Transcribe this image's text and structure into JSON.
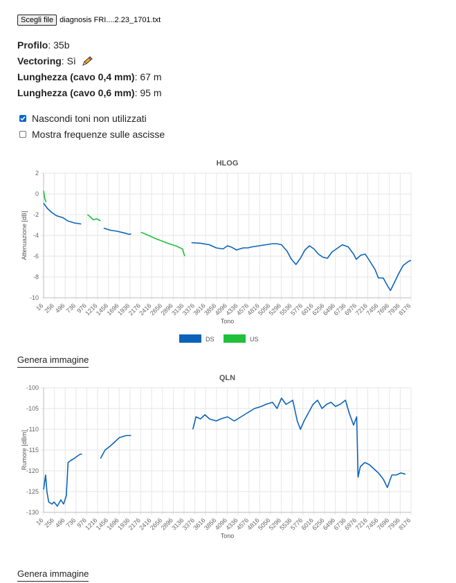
{
  "file": {
    "button_label": "Scegli file",
    "file_name": "diagnosis FRI....2.23_1701.txt"
  },
  "info": [
    {
      "label": "Profilo",
      "value": "35b"
    },
    {
      "label": "Vectoring",
      "value": "Sì"
    },
    {
      "label": "Lunghezza (cavo 0,4 mm)",
      "value": "67 m"
    },
    {
      "label": "Lunghezza (cavo 0,6 mm)",
      "value": "95 m"
    }
  ],
  "vectoring_icon": "pencil-icon",
  "options": [
    {
      "label": "Nascondi toni non utilizzati",
      "checked": true
    },
    {
      "label": "Mostra frequenze sulle ascisse",
      "checked": false
    }
  ],
  "generate_label": "Genera immagine",
  "colors": {
    "ds": "#0b63b8",
    "us": "#1fc03a",
    "grid": "#e6e6e6",
    "checkbox": "#0b63ce"
  },
  "x_ticks": [
    "16",
    "256",
    "496",
    "736",
    "976",
    "1216",
    "1456",
    "1696",
    "1936",
    "2176",
    "2416",
    "2656",
    "2896",
    "3136",
    "3376",
    "3616",
    "3856",
    "4096",
    "4336",
    "4576",
    "4816",
    "5056",
    "5296",
    "5536",
    "5776",
    "6016",
    "6256",
    "6496",
    "6736",
    "6976",
    "7216",
    "7456",
    "7696",
    "7936",
    "8176"
  ],
  "chart_data": [
    {
      "type": "line",
      "title": "HLOG",
      "xlabel": "Tono",
      "ylabel": "Attenuazione [dB]",
      "ylim": [
        -10,
        2
      ],
      "xlim": [
        16,
        8176
      ],
      "y_ticks": [
        "2",
        "0",
        "-2",
        "-4",
        "-6",
        "-8",
        "-10"
      ],
      "legend": [
        "DS",
        "US"
      ],
      "legend_position": "bottom",
      "series": [
        {
          "name": "DS",
          "segments": [
            [
              [
                16,
                -0.9
              ],
              [
                100,
                -1.4
              ],
              [
                200,
                -1.8
              ],
              [
                300,
                -2.1
              ],
              [
                450,
                -2.3
              ],
              [
                550,
                -2.6
              ],
              [
                700,
                -2.8
              ],
              [
                850,
                -2.9
              ]
            ],
            [
              [
                1350,
                -3.3
              ],
              [
                1500,
                -3.5
              ],
              [
                1650,
                -3.6
              ],
              [
                1800,
                -3.75
              ],
              [
                1920,
                -3.9
              ],
              [
                1960,
                -3.85
              ]
            ],
            [
              [
                3300,
                -4.7
              ],
              [
                3500,
                -4.75
              ],
              [
                3700,
                -4.9
              ],
              [
                3850,
                -5.2
              ],
              [
                4000,
                -5.3
              ],
              [
                4100,
                -5.0
              ],
              [
                4200,
                -5.15
              ],
              [
                4300,
                -5.4
              ],
              [
                4450,
                -5.2
              ],
              [
                4550,
                -5.2
              ],
              [
                4650,
                -5.1
              ],
              [
                4800,
                -5.0
              ],
              [
                4950,
                -4.9
              ],
              [
                5100,
                -4.8
              ],
              [
                5200,
                -4.8
              ],
              [
                5300,
                -4.9
              ],
              [
                5420,
                -5.5
              ],
              [
                5520,
                -6.3
              ],
              [
                5620,
                -6.8
              ],
              [
                5720,
                -6.2
              ],
              [
                5820,
                -5.4
              ],
              [
                5920,
                -5.0
              ],
              [
                6020,
                -5.3
              ],
              [
                6120,
                -5.8
              ],
              [
                6220,
                -6.1
              ],
              [
                6320,
                -6.2
              ],
              [
                6420,
                -5.6
              ],
              [
                6520,
                -5.3
              ],
              [
                6650,
                -4.9
              ],
              [
                6780,
                -5.1
              ],
              [
                6900,
                -5.8
              ],
              [
                6960,
                -6.3
              ],
              [
                7060,
                -5.9
              ],
              [
                7160,
                -5.8
              ],
              [
                7250,
                -6.4
              ],
              [
                7380,
                -7.3
              ],
              [
                7450,
                -8.1
              ],
              [
                7560,
                -8.1
              ],
              [
                7660,
                -8.9
              ],
              [
                7720,
                -9.3
              ],
              [
                7800,
                -8.6
              ],
              [
                7900,
                -7.7
              ],
              [
                8000,
                -6.9
              ],
              [
                8120,
                -6.5
              ],
              [
                8176,
                -6.4
              ]
            ]
          ]
        },
        {
          "name": "US",
          "segments": [
            [
              [
                16,
                0.3
              ],
              [
                40,
                -0.4
              ],
              [
                70,
                -0.8
              ]
            ],
            [
              [
                990,
                -2.0
              ],
              [
                1050,
                -2.2
              ],
              [
                1120,
                -2.5
              ],
              [
                1200,
                -2.4
              ],
              [
                1280,
                -2.6
              ]
            ],
            [
              [
                2180,
                -3.7
              ],
              [
                2350,
                -4.0
              ],
              [
                2500,
                -4.3
              ],
              [
                2650,
                -4.55
              ],
              [
                2800,
                -4.8
              ],
              [
                2950,
                -5.0
              ],
              [
                3100,
                -5.3
              ],
              [
                3150,
                -6.0
              ]
            ]
          ]
        }
      ]
    },
    {
      "type": "line",
      "title": "QLN",
      "xlabel": "Tono",
      "ylabel": "Rumore [dBm]",
      "ylim": [
        -130,
        -100
      ],
      "xlim": [
        16,
        8176
      ],
      "y_ticks": [
        "-100",
        "-105",
        "-110",
        "-115",
        "-120",
        "-125",
        "-130"
      ],
      "series": [
        {
          "name": "",
          "segments": [
            [
              [
                16,
                -124.5
              ],
              [
                60,
                -121
              ],
              [
                90,
                -125
              ],
              [
                130,
                -127.5
              ],
              [
                200,
                -128
              ],
              [
                250,
                -127.5
              ],
              [
                320,
                -128.5
              ],
              [
                400,
                -127
              ],
              [
                460,
                -128
              ],
              [
                520,
                -126
              ],
              [
                560,
                -118
              ],
              [
                620,
                -117.5
              ],
              [
                700,
                -117
              ],
              [
                760,
                -116.5
              ],
              [
                830,
                -116
              ],
              [
                870,
                -116
              ]
            ],
            [
              [
                1280,
                -117
              ],
              [
                1380,
                -115
              ],
              [
                1500,
                -114
              ],
              [
                1600,
                -113
              ],
              [
                1700,
                -112
              ],
              [
                1850,
                -111.5
              ],
              [
                1960,
                -111.5
              ]
            ],
            [
              [
                3330,
                -110
              ],
              [
                3400,
                -107
              ],
              [
                3500,
                -107.5
              ],
              [
                3600,
                -106.5
              ],
              [
                3700,
                -107.5
              ],
              [
                3850,
                -108
              ],
              [
                3950,
                -107.5
              ],
              [
                4100,
                -107
              ],
              [
                4250,
                -108
              ],
              [
                4400,
                -107
              ],
              [
                4550,
                -106
              ],
              [
                4700,
                -105
              ],
              [
                4850,
                -104.5
              ],
              [
                4950,
                -104
              ],
              [
                5100,
                -103.5
              ],
              [
                5200,
                -105
              ],
              [
                5300,
                -102.5
              ],
              [
                5400,
                -104
              ],
              [
                5550,
                -103
              ],
              [
                5650,
                -108
              ],
              [
                5720,
                -110
              ],
              [
                5800,
                -108
              ],
              [
                5900,
                -106
              ],
              [
                6000,
                -104
              ],
              [
                6100,
                -103
              ],
              [
                6200,
                -105
              ],
              [
                6300,
                -104
              ],
              [
                6400,
                -103.5
              ],
              [
                6500,
                -104.5
              ],
              [
                6600,
                -104
              ],
              [
                6720,
                -103
              ],
              [
                6800,
                -106
              ],
              [
                6900,
                -109
              ],
              [
                6970,
                -107
              ],
              [
                7000,
                -121.5
              ],
              [
                7050,
                -119
              ],
              [
                7150,
                -118
              ],
              [
                7250,
                -118.5
              ],
              [
                7350,
                -119.5
              ],
              [
                7450,
                -120.5
              ],
              [
                7560,
                -122
              ],
              [
                7650,
                -124
              ],
              [
                7750,
                -121
              ],
              [
                7850,
                -121
              ],
              [
                7950,
                -120.5
              ],
              [
                8050,
                -120.8
              ]
            ]
          ]
        }
      ]
    }
  ]
}
